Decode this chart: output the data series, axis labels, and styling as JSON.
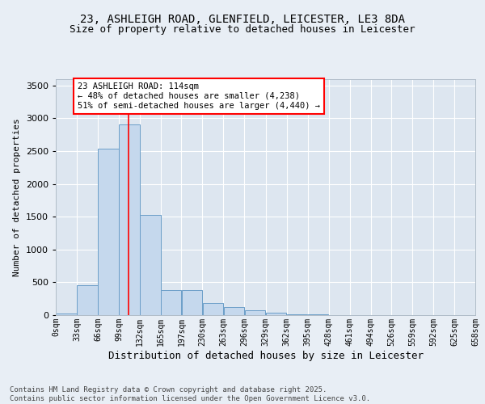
{
  "title_line1": "23, ASHLEIGH ROAD, GLENFIELD, LEICESTER, LE3 8DA",
  "title_line2": "Size of property relative to detached houses in Leicester",
  "xlabel": "Distribution of detached houses by size in Leicester",
  "ylabel": "Number of detached properties",
  "bar_color": "#c5d8ed",
  "bar_edge_color": "#6b9ec8",
  "background_color": "#dde6f0",
  "grid_color": "#ffffff",
  "fig_bg_color": "#e8eef5",
  "annotation_text": "23 ASHLEIGH ROAD: 114sqm\n← 48% of detached houses are smaller (4,238)\n51% of semi-detached houses are larger (4,440) →",
  "property_line_x": 114,
  "bins": [
    0,
    33,
    66,
    99,
    132,
    165,
    197,
    230,
    263,
    296,
    329,
    362,
    395,
    428,
    461,
    494,
    526,
    559,
    592,
    625,
    658
  ],
  "bin_labels": [
    "0sqm",
    "33sqm",
    "66sqm",
    "99sqm",
    "132sqm",
    "165sqm",
    "197sqm",
    "230sqm",
    "263sqm",
    "296sqm",
    "329sqm",
    "362sqm",
    "395sqm",
    "428sqm",
    "461sqm",
    "494sqm",
    "526sqm",
    "559sqm",
    "592sqm",
    "625sqm",
    "658sqm"
  ],
  "heights": [
    20,
    460,
    2530,
    2900,
    1530,
    380,
    380,
    180,
    120,
    80,
    40,
    15,
    10,
    5,
    5,
    2,
    2,
    1,
    1,
    1
  ],
  "ylim": [
    0,
    3600
  ],
  "yticks": [
    0,
    500,
    1000,
    1500,
    2000,
    2500,
    3000,
    3500
  ],
  "footer_text": "Contains HM Land Registry data © Crown copyright and database right 2025.\nContains public sector information licensed under the Open Government Licence v3.0.",
  "title_fontsize": 10,
  "subtitle_fontsize": 9,
  "axis_label_fontsize": 8,
  "tick_fontsize": 7,
  "annotation_fontsize": 7.5,
  "footer_fontsize": 6.5
}
